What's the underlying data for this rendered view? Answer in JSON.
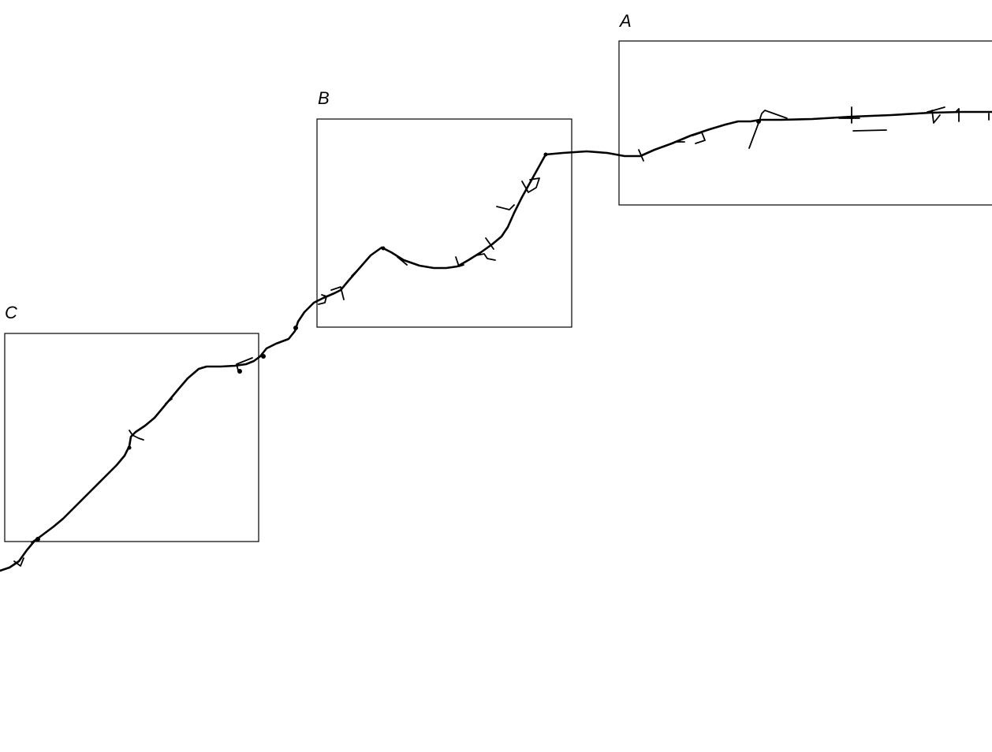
{
  "map": {
    "regions": [
      {
        "id": "A",
        "label": "A"
      },
      {
        "id": "B",
        "label": "B"
      },
      {
        "id": "C",
        "label": "C"
      }
    ],
    "line_color": "#000000",
    "background_color": "#ffffff"
  }
}
